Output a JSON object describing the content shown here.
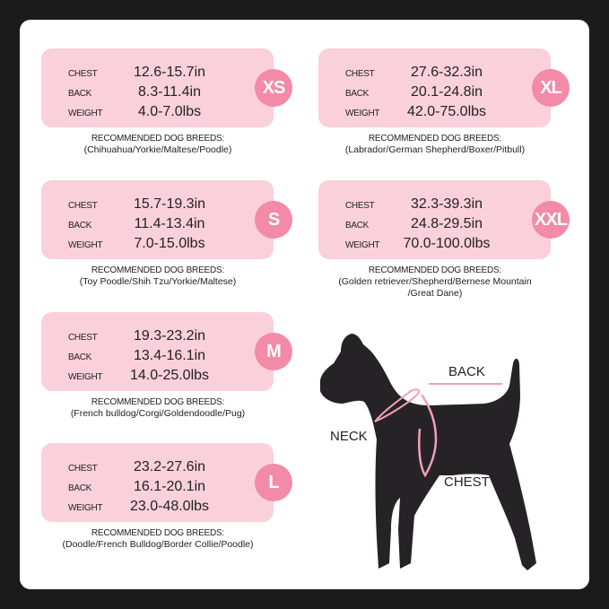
{
  "labels": {
    "chest": "CHEST",
    "back": "BACK",
    "weight": "WEIGHT",
    "recommended": "RECOMMENDED DOG BREEDS:"
  },
  "sizes": [
    {
      "size": "XS",
      "chest": "12.6-15.7in",
      "back": "8.3-11.4in",
      "weight": "4.0-7.0lbs",
      "breeds": [
        "(Chihuahua/Yorkie/Maltese/Poodle)"
      ]
    },
    {
      "size": "S",
      "chest": "15.7-19.3in",
      "back": "11.4-13.4in",
      "weight": "7.0-15.0lbs",
      "breeds": [
        "(Toy Poodle/Shih Tzu/Yorkie/Maltese)"
      ]
    },
    {
      "size": "M",
      "chest": "19.3-23.2in",
      "back": "13.4-16.1in",
      "weight": "14.0-25.0lbs",
      "breeds": [
        "(French bulldog/Corgi/Goldendoodle/Pug)"
      ]
    },
    {
      "size": "L",
      "chest": "23.2-27.6in",
      "back": "16.1-20.1in",
      "weight": "23.0-48.0lbs",
      "breeds": [
        "(Doodle/French Bulldog/Border Collie/Poodle)"
      ]
    },
    {
      "size": "XL",
      "chest": "27.6-32.3in",
      "back": "20.1-24.8in",
      "weight": "42.0-75.0lbs",
      "breeds": [
        "(Labrador/German Shepherd/Boxer/Pitbull)"
      ]
    },
    {
      "size": "XXL",
      "chest": "32.3-39.3in",
      "back": "24.8-29.5in",
      "weight": "70.0-100.0lbs",
      "breeds": [
        "(Golden retriever/Shepherd/Bernese Mountain",
        "/Great Dane)"
      ]
    }
  ],
  "diagram": {
    "back": "BACK",
    "neck": "NECK",
    "chest": "CHEST"
  },
  "colors": {
    "card": "#fad0da",
    "badge": "#f28aa8",
    "harness": "#f0a0b8",
    "background": "#1b1b1b"
  }
}
